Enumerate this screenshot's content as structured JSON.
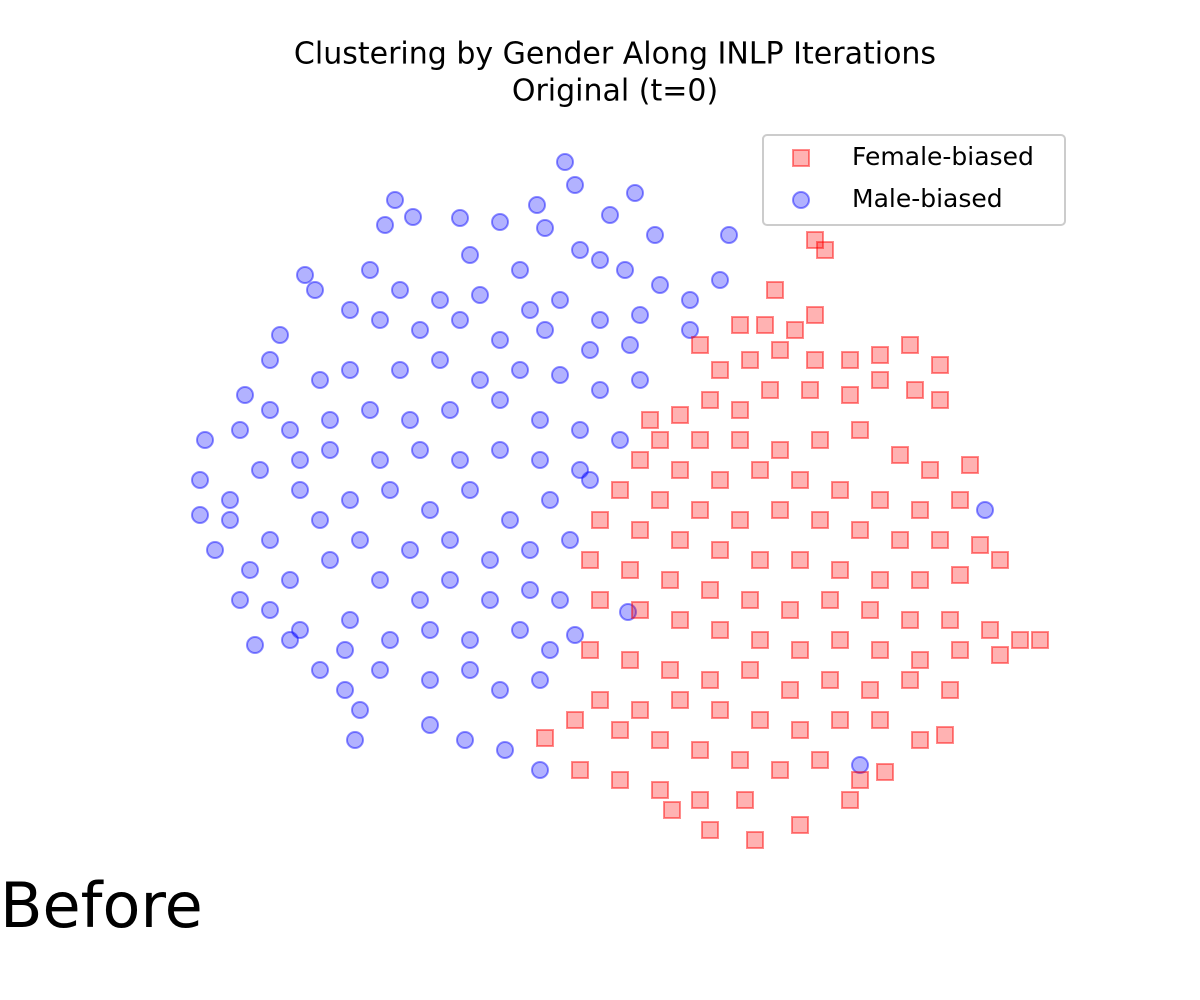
{
  "chart_data": {
    "type": "scatter",
    "title": "Clustering by Gender Along INLP Iterations",
    "subtitle": "Original (t=0)",
    "annotation": "Before",
    "legend": "upper right",
    "xlim": [
      180,
      1060
    ],
    "ylim": [
      140,
      850
    ],
    "series": [
      {
        "name": "Female-biased",
        "color": "#ff0000",
        "marker": "square",
        "x": [
          815,
          825,
          775,
          815,
          740,
          765,
          795,
          700,
          720,
          750,
          780,
          815,
          850,
          880,
          910,
          940,
          880,
          915,
          940,
          850,
          810,
          770,
          740,
          710,
          680,
          650,
          660,
          700,
          740,
          780,
          820,
          860,
          900,
          930,
          970,
          640,
          680,
          720,
          760,
          800,
          840,
          880,
          920,
          960,
          620,
          660,
          700,
          740,
          780,
          820,
          860,
          900,
          940,
          980,
          600,
          640,
          680,
          720,
          760,
          800,
          840,
          880,
          920,
          960,
          1000,
          590,
          630,
          670,
          710,
          750,
          790,
          830,
          870,
          910,
          950,
          990,
          1020,
          600,
          640,
          680,
          720,
          760,
          800,
          840,
          880,
          920,
          960,
          1000,
          1040,
          590,
          630,
          670,
          710,
          750,
          790,
          830,
          870,
          910,
          950,
          600,
          640,
          680,
          720,
          760,
          800,
          840,
          880,
          920,
          575,
          620,
          660,
          700,
          740,
          780,
          820,
          860,
          545,
          580,
          620,
          660,
          700,
          745,
          672,
          710,
          755,
          800,
          850,
          885,
          945
        ],
        "y": [
          760,
          750,
          710,
          685,
          675,
          675,
          670,
          655,
          630,
          640,
          650,
          640,
          640,
          645,
          655,
          635,
          620,
          610,
          600,
          605,
          610,
          610,
          590,
          600,
          585,
          580,
          560,
          560,
          560,
          550,
          560,
          570,
          545,
          530,
          535,
          540,
          530,
          520,
          530,
          520,
          510,
          500,
          490,
          500,
          510,
          500,
          490,
          480,
          490,
          480,
          470,
          460,
          460,
          455,
          480,
          470,
          460,
          450,
          440,
          440,
          430,
          420,
          420,
          425,
          440,
          440,
          430,
          420,
          410,
          400,
          390,
          400,
          390,
          380,
          380,
          370,
          360,
          400,
          390,
          380,
          370,
          360,
          350,
          360,
          350,
          340,
          350,
          345,
          360,
          350,
          340,
          330,
          320,
          330,
          310,
          320,
          310,
          320,
          310,
          300,
          290,
          300,
          290,
          280,
          270,
          280,
          280,
          260,
          280,
          270,
          260,
          250,
          240,
          230,
          240,
          220,
          262,
          230,
          220,
          210,
          200,
          200,
          190,
          170,
          160,
          175,
          200,
          228,
          265
        ]
      },
      {
        "name": "Male-biased",
        "color": "#0000ff",
        "marker": "circle",
        "x": [
          565,
          575,
          537,
          395,
          385,
          413,
          460,
          500,
          545,
          610,
          635,
          655,
          729,
          470,
          520,
          580,
          600,
          625,
          660,
          690,
          720,
          305,
          315,
          370,
          400,
          440,
          480,
          530,
          560,
          600,
          640,
          690,
          350,
          380,
          420,
          460,
          500,
          545,
          590,
          630,
          270,
          280,
          320,
          350,
          400,
          440,
          480,
          520,
          560,
          600,
          640,
          245,
          270,
          290,
          330,
          370,
          410,
          450,
          500,
          540,
          580,
          620,
          205,
          240,
          300,
          330,
          380,
          420,
          460,
          500,
          540,
          580,
          200,
          230,
          260,
          300,
          350,
          390,
          430,
          470,
          510,
          550,
          590,
          200,
          230,
          270,
          320,
          360,
          410,
          450,
          490,
          530,
          570,
          215,
          250,
          290,
          330,
          380,
          420,
          450,
          490,
          530,
          560,
          240,
          270,
          300,
          350,
          390,
          430,
          470,
          520,
          550,
          255,
          290,
          320,
          345,
          380,
          430,
          470,
          500,
          540,
          345,
          360,
          355,
          430,
          465,
          505,
          540,
          985,
          628,
          860,
          575
        ],
        "y": [
          838,
          815,
          795,
          800,
          775,
          783,
          782,
          778,
          772,
          785,
          807,
          765,
          765,
          745,
          730,
          750,
          740,
          730,
          715,
          700,
          720,
          725,
          710,
          730,
          710,
          700,
          705,
          690,
          700,
          680,
          685,
          670,
          690,
          680,
          670,
          680,
          660,
          670,
          650,
          655,
          640,
          665,
          620,
          630,
          630,
          640,
          620,
          630,
          625,
          610,
          620,
          605,
          590,
          570,
          580,
          590,
          580,
          590,
          600,
          580,
          570,
          560,
          560,
          570,
          540,
          550,
          540,
          550,
          540,
          550,
          540,
          530,
          520,
          500,
          530,
          510,
          500,
          510,
          490,
          510,
          480,
          500,
          520,
          485,
          480,
          460,
          480,
          460,
          450,
          460,
          440,
          450,
          460,
          450,
          430,
          420,
          440,
          420,
          400,
          420,
          400,
          410,
          400,
          400,
          390,
          370,
          380,
          360,
          370,
          360,
          370,
          350,
          355,
          360,
          330,
          350,
          330,
          320,
          330,
          310,
          320,
          310,
          290,
          260,
          275,
          260,
          250,
          230,
          490,
          388,
          235,
          365
        ]
      }
    ]
  }
}
